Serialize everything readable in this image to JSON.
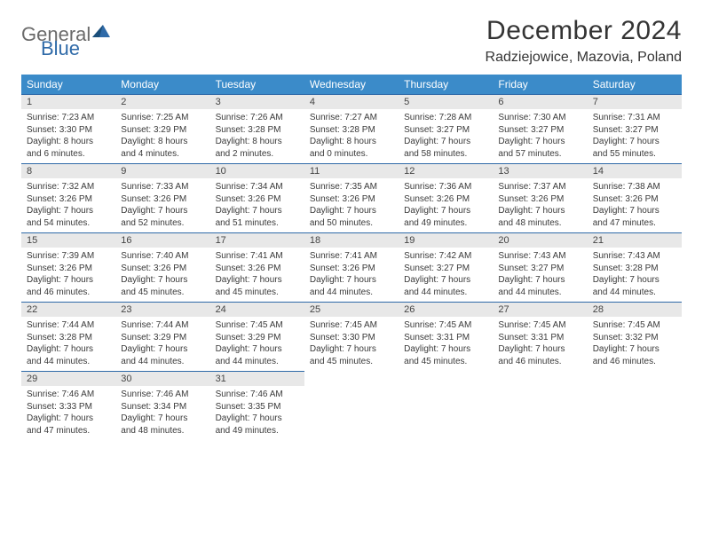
{
  "logo": {
    "word1": "General",
    "word2": "Blue"
  },
  "title": "December 2024",
  "location": "Radziejowice, Mazovia, Poland",
  "day_names": [
    "Sunday",
    "Monday",
    "Tuesday",
    "Wednesday",
    "Thursday",
    "Friday",
    "Saturday"
  ],
  "theme": {
    "header_bg": "#3b8bc9",
    "header_fg": "#ffffff",
    "daynum_bg": "#e8e8e8",
    "daynum_border": "#2f6aa8",
    "text": "#3a3a3a",
    "logo_gray": "#6b6b6b",
    "logo_blue": "#2f6aa8",
    "page_bg": "#ffffff"
  },
  "weeks": [
    [
      {
        "n": "1",
        "sr": "Sunrise: 7:23 AM",
        "ss": "Sunset: 3:30 PM",
        "d1": "Daylight: 8 hours",
        "d2": "and 6 minutes."
      },
      {
        "n": "2",
        "sr": "Sunrise: 7:25 AM",
        "ss": "Sunset: 3:29 PM",
        "d1": "Daylight: 8 hours",
        "d2": "and 4 minutes."
      },
      {
        "n": "3",
        "sr": "Sunrise: 7:26 AM",
        "ss": "Sunset: 3:28 PM",
        "d1": "Daylight: 8 hours",
        "d2": "and 2 minutes."
      },
      {
        "n": "4",
        "sr": "Sunrise: 7:27 AM",
        "ss": "Sunset: 3:28 PM",
        "d1": "Daylight: 8 hours",
        "d2": "and 0 minutes."
      },
      {
        "n": "5",
        "sr": "Sunrise: 7:28 AM",
        "ss": "Sunset: 3:27 PM",
        "d1": "Daylight: 7 hours",
        "d2": "and 58 minutes."
      },
      {
        "n": "6",
        "sr": "Sunrise: 7:30 AM",
        "ss": "Sunset: 3:27 PM",
        "d1": "Daylight: 7 hours",
        "d2": "and 57 minutes."
      },
      {
        "n": "7",
        "sr": "Sunrise: 7:31 AM",
        "ss": "Sunset: 3:27 PM",
        "d1": "Daylight: 7 hours",
        "d2": "and 55 minutes."
      }
    ],
    [
      {
        "n": "8",
        "sr": "Sunrise: 7:32 AM",
        "ss": "Sunset: 3:26 PM",
        "d1": "Daylight: 7 hours",
        "d2": "and 54 minutes."
      },
      {
        "n": "9",
        "sr": "Sunrise: 7:33 AM",
        "ss": "Sunset: 3:26 PM",
        "d1": "Daylight: 7 hours",
        "d2": "and 52 minutes."
      },
      {
        "n": "10",
        "sr": "Sunrise: 7:34 AM",
        "ss": "Sunset: 3:26 PM",
        "d1": "Daylight: 7 hours",
        "d2": "and 51 minutes."
      },
      {
        "n": "11",
        "sr": "Sunrise: 7:35 AM",
        "ss": "Sunset: 3:26 PM",
        "d1": "Daylight: 7 hours",
        "d2": "and 50 minutes."
      },
      {
        "n": "12",
        "sr": "Sunrise: 7:36 AM",
        "ss": "Sunset: 3:26 PM",
        "d1": "Daylight: 7 hours",
        "d2": "and 49 minutes."
      },
      {
        "n": "13",
        "sr": "Sunrise: 7:37 AM",
        "ss": "Sunset: 3:26 PM",
        "d1": "Daylight: 7 hours",
        "d2": "and 48 minutes."
      },
      {
        "n": "14",
        "sr": "Sunrise: 7:38 AM",
        "ss": "Sunset: 3:26 PM",
        "d1": "Daylight: 7 hours",
        "d2": "and 47 minutes."
      }
    ],
    [
      {
        "n": "15",
        "sr": "Sunrise: 7:39 AM",
        "ss": "Sunset: 3:26 PM",
        "d1": "Daylight: 7 hours",
        "d2": "and 46 minutes."
      },
      {
        "n": "16",
        "sr": "Sunrise: 7:40 AM",
        "ss": "Sunset: 3:26 PM",
        "d1": "Daylight: 7 hours",
        "d2": "and 45 minutes."
      },
      {
        "n": "17",
        "sr": "Sunrise: 7:41 AM",
        "ss": "Sunset: 3:26 PM",
        "d1": "Daylight: 7 hours",
        "d2": "and 45 minutes."
      },
      {
        "n": "18",
        "sr": "Sunrise: 7:41 AM",
        "ss": "Sunset: 3:26 PM",
        "d1": "Daylight: 7 hours",
        "d2": "and 44 minutes."
      },
      {
        "n": "19",
        "sr": "Sunrise: 7:42 AM",
        "ss": "Sunset: 3:27 PM",
        "d1": "Daylight: 7 hours",
        "d2": "and 44 minutes."
      },
      {
        "n": "20",
        "sr": "Sunrise: 7:43 AM",
        "ss": "Sunset: 3:27 PM",
        "d1": "Daylight: 7 hours",
        "d2": "and 44 minutes."
      },
      {
        "n": "21",
        "sr": "Sunrise: 7:43 AM",
        "ss": "Sunset: 3:28 PM",
        "d1": "Daylight: 7 hours",
        "d2": "and 44 minutes."
      }
    ],
    [
      {
        "n": "22",
        "sr": "Sunrise: 7:44 AM",
        "ss": "Sunset: 3:28 PM",
        "d1": "Daylight: 7 hours",
        "d2": "and 44 minutes."
      },
      {
        "n": "23",
        "sr": "Sunrise: 7:44 AM",
        "ss": "Sunset: 3:29 PM",
        "d1": "Daylight: 7 hours",
        "d2": "and 44 minutes."
      },
      {
        "n": "24",
        "sr": "Sunrise: 7:45 AM",
        "ss": "Sunset: 3:29 PM",
        "d1": "Daylight: 7 hours",
        "d2": "and 44 minutes."
      },
      {
        "n": "25",
        "sr": "Sunrise: 7:45 AM",
        "ss": "Sunset: 3:30 PM",
        "d1": "Daylight: 7 hours",
        "d2": "and 45 minutes."
      },
      {
        "n": "26",
        "sr": "Sunrise: 7:45 AM",
        "ss": "Sunset: 3:31 PM",
        "d1": "Daylight: 7 hours",
        "d2": "and 45 minutes."
      },
      {
        "n": "27",
        "sr": "Sunrise: 7:45 AM",
        "ss": "Sunset: 3:31 PM",
        "d1": "Daylight: 7 hours",
        "d2": "and 46 minutes."
      },
      {
        "n": "28",
        "sr": "Sunrise: 7:45 AM",
        "ss": "Sunset: 3:32 PM",
        "d1": "Daylight: 7 hours",
        "d2": "and 46 minutes."
      }
    ],
    [
      {
        "n": "29",
        "sr": "Sunrise: 7:46 AM",
        "ss": "Sunset: 3:33 PM",
        "d1": "Daylight: 7 hours",
        "d2": "and 47 minutes."
      },
      {
        "n": "30",
        "sr": "Sunrise: 7:46 AM",
        "ss": "Sunset: 3:34 PM",
        "d1": "Daylight: 7 hours",
        "d2": "and 48 minutes."
      },
      {
        "n": "31",
        "sr": "Sunrise: 7:46 AM",
        "ss": "Sunset: 3:35 PM",
        "d1": "Daylight: 7 hours",
        "d2": "and 49 minutes."
      },
      {
        "empty": true
      },
      {
        "empty": true
      },
      {
        "empty": true
      },
      {
        "empty": true
      }
    ]
  ]
}
